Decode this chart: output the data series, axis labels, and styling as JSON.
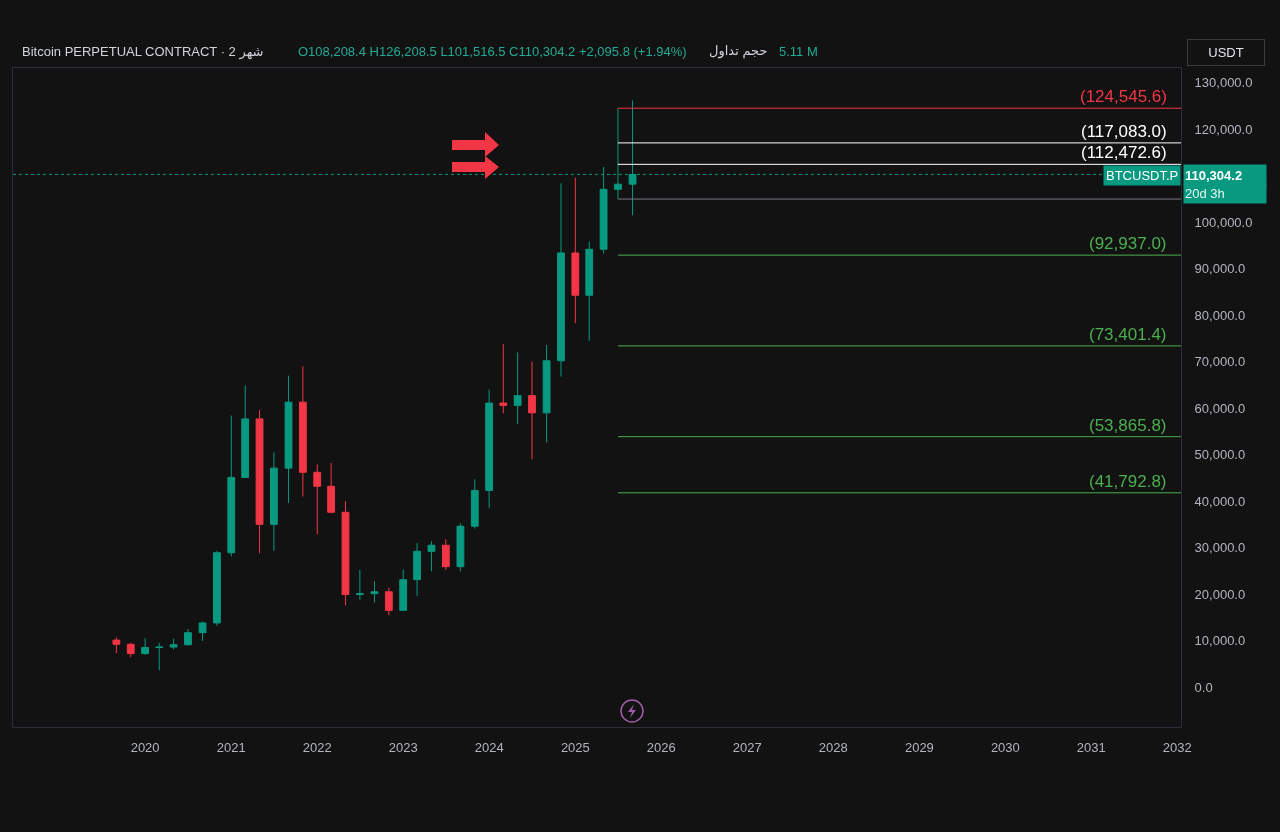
{
  "chart_data": {
    "type": "candlestick",
    "title": "Bitcoin PERPETUAL CONTRACT · 2 شهر",
    "subtitle": "O108,208.4 H126,208.5 L101,516.5 C110,304.2 +2,095.8 (+1.94%)",
    "ylabel": "USDT",
    "annotations": [
      "حجم تداول",
      "5.11 M",
      "BTCUSDT.P",
      "20d 3h"
    ],
    "x": [
      "2019-09",
      "2019-11",
      "2020-01",
      "2020-03",
      "2020-05",
      "2020-07",
      "2020-09",
      "2020-11",
      "2021-01",
      "2021-03",
      "2021-05",
      "2021-07",
      "2021-09",
      "2021-11",
      "2022-01",
      "2022-03",
      "2022-05",
      "2022-07",
      "2022-09",
      "2022-11",
      "2023-01",
      "2023-03",
      "2023-05",
      "2023-07",
      "2023-09",
      "2023-11",
      "2024-01",
      "2024-03",
      "2024-05",
      "2024-07",
      "2024-09",
      "2024-11",
      "2025-01",
      "2025-03",
      "2025-05",
      "2025-07",
      "2025-09"
    ],
    "ohlc": [
      [
        10100,
        10700,
        7300,
        9200
      ],
      [
        9200,
        9500,
        6400,
        7200
      ],
      [
        7200,
        10500,
        6900,
        8500
      ],
      [
        8500,
        9500,
        3600,
        8600
      ],
      [
        8600,
        10400,
        8100,
        9100
      ],
      [
        9100,
        12500,
        8900,
        11700
      ],
      [
        11700,
        14100,
        9900,
        13800
      ],
      [
        13800,
        29300,
        13200,
        28900
      ],
      [
        28900,
        58400,
        28100,
        45100
      ],
      [
        45100,
        64900,
        45000,
        57700
      ],
      [
        57700,
        59600,
        28800,
        35000
      ],
      [
        35000,
        50500,
        29300,
        47100
      ],
      [
        47100,
        67000,
        39600,
        61300
      ],
      [
        61300,
        69000,
        41000,
        46200
      ],
      [
        46200,
        47900,
        32900,
        43200
      ],
      [
        43200,
        48200,
        37400,
        37600
      ],
      [
        37600,
        40000,
        17600,
        19900
      ],
      [
        19900,
        25200,
        18800,
        20100
      ],
      [
        20100,
        22800,
        18200,
        20500
      ],
      [
        20500,
        21400,
        15500,
        16500
      ],
      [
        16500,
        25300,
        16500,
        23100
      ],
      [
        23100,
        31000,
        19600,
        29200
      ],
      [
        29200,
        31400,
        24900,
        30500
      ],
      [
        30500,
        31800,
        25200,
        25900
      ],
      [
        25900,
        35200,
        24900,
        34600
      ],
      [
        34600,
        44700,
        34100,
        42300
      ],
      [
        42300,
        64000,
        38500,
        61100
      ],
      [
        61100,
        73800,
        58900,
        60600
      ],
      [
        60600,
        72000,
        56600,
        62700
      ],
      [
        62700,
        70000,
        49000,
        59000
      ],
      [
        59000,
        73600,
        52600,
        70200
      ],
      [
        70200,
        108400,
        66800,
        93400
      ],
      [
        93400,
        109600,
        78300,
        84300
      ],
      [
        84300,
        95800,
        74500,
        94200
      ],
      [
        94200,
        111900,
        93300,
        107100
      ],
      [
        107100,
        124500,
        105000,
        108200
      ],
      [
        108208.4,
        126208.5,
        101516.5,
        110304.2
      ]
    ],
    "colors": [
      "#f23645",
      "#f23645",
      "#089981",
      "#089981",
      "#089981",
      "#089981",
      "#089981",
      "#089981",
      "#089981",
      "#089981",
      "#f23645",
      "#089981",
      "#089981",
      "#f23645",
      "#f23645",
      "#f23645",
      "#f23645",
      "#089981",
      "#089981",
      "#f23645",
      "#089981",
      "#089981",
      "#089981",
      "#f23645",
      "#089981",
      "#089981",
      "#089981",
      "#f23645",
      "#089981",
      "#f23645",
      "#089981",
      "#089981",
      "#f23645",
      "#089981",
      "#089981",
      "#089981",
      "#089981"
    ],
    "series": [
      {
        "type": "line",
        "name": "(124,545.6)",
        "color": "#f23645",
        "x": [
          "2025-07",
          "2032-01-17"
        ],
        "values": [
          124545.6,
          124545.6
        ]
      },
      {
        "type": "line",
        "name": "(117,083.0)",
        "color": "#ffffff",
        "x": [
          "2025-07",
          "2032-01-17"
        ],
        "values": [
          117083.0,
          117083.0
        ]
      },
      {
        "type": "line",
        "name": "(112,472.6)",
        "color": "#ffffff",
        "x": [
          "2025-07",
          "2032-01-17"
        ],
        "values": [
          112472.6,
          112472.6
        ]
      },
      {
        "type": "line",
        "color": "#787b86",
        "x": [
          "2025-07",
          "2032-01-17"
        ],
        "values": [
          105000,
          105000
        ]
      },
      {
        "type": "line",
        "name": "(92,937.0)",
        "color": "#4caf50",
        "x": [
          "2025-07",
          "2032-01-17"
        ],
        "values": [
          92937.0,
          92937.0
        ]
      },
      {
        "type": "line",
        "name": "(73,401.4)",
        "color": "#4caf50",
        "x": [
          "2025-07",
          "2032-01-17"
        ],
        "values": [
          73401.4,
          73401.4
        ]
      },
      {
        "type": "line",
        "name": "(53,865.8)",
        "color": "#4caf50",
        "x": [
          "2025-07",
          "2032-01-17"
        ],
        "values": [
          53865.8,
          53865.8
        ]
      },
      {
        "type": "line",
        "name": "(41,792.8)",
        "color": "#4caf50",
        "x": [
          "2025-07",
          "2032-01-17"
        ],
        "values": [
          41792.8,
          41792.8
        ]
      }
    ],
    "ref_lines": [
      {
        "axis": "y",
        "value": 110304.2,
        "label": "110,304.2",
        "color": "#089981",
        "line_style": "dotted"
      }
    ],
    "xlim": [
      "2018-06-19",
      "2032-01-17"
    ],
    "xticks": [
      "2020",
      "2021",
      "2022",
      "2023",
      "2024",
      "2025",
      "2026",
      "2027",
      "2028",
      "2029",
      "2030",
      "2031",
      "2032"
    ],
    "ylim": [
      -8600,
      133200
    ],
    "yticks": [
      {
        "value": 0,
        "label": "0.0"
      },
      {
        "value": 10000,
        "label": "10,000.0"
      },
      {
        "value": 20000,
        "label": "20,000.0"
      },
      {
        "value": 30000,
        "label": "30,000.0"
      },
      {
        "value": 40000,
        "label": "40,000.0"
      },
      {
        "value": 50000,
        "label": "50,000.0"
      },
      {
        "value": 60000,
        "label": "60,000.0"
      },
      {
        "value": 70000,
        "label": "70,000.0"
      },
      {
        "value": 80000,
        "label": "80,000.0"
      },
      {
        "value": 90000,
        "label": "90,000.0"
      },
      {
        "value": 100000,
        "label": "100,000.0"
      },
      {
        "value": 110000,
        "label": null
      },
      {
        "value": 120000,
        "label": "120,000.0"
      },
      {
        "value": 130000,
        "label": "130,000.0"
      }
    ]
  }
}
